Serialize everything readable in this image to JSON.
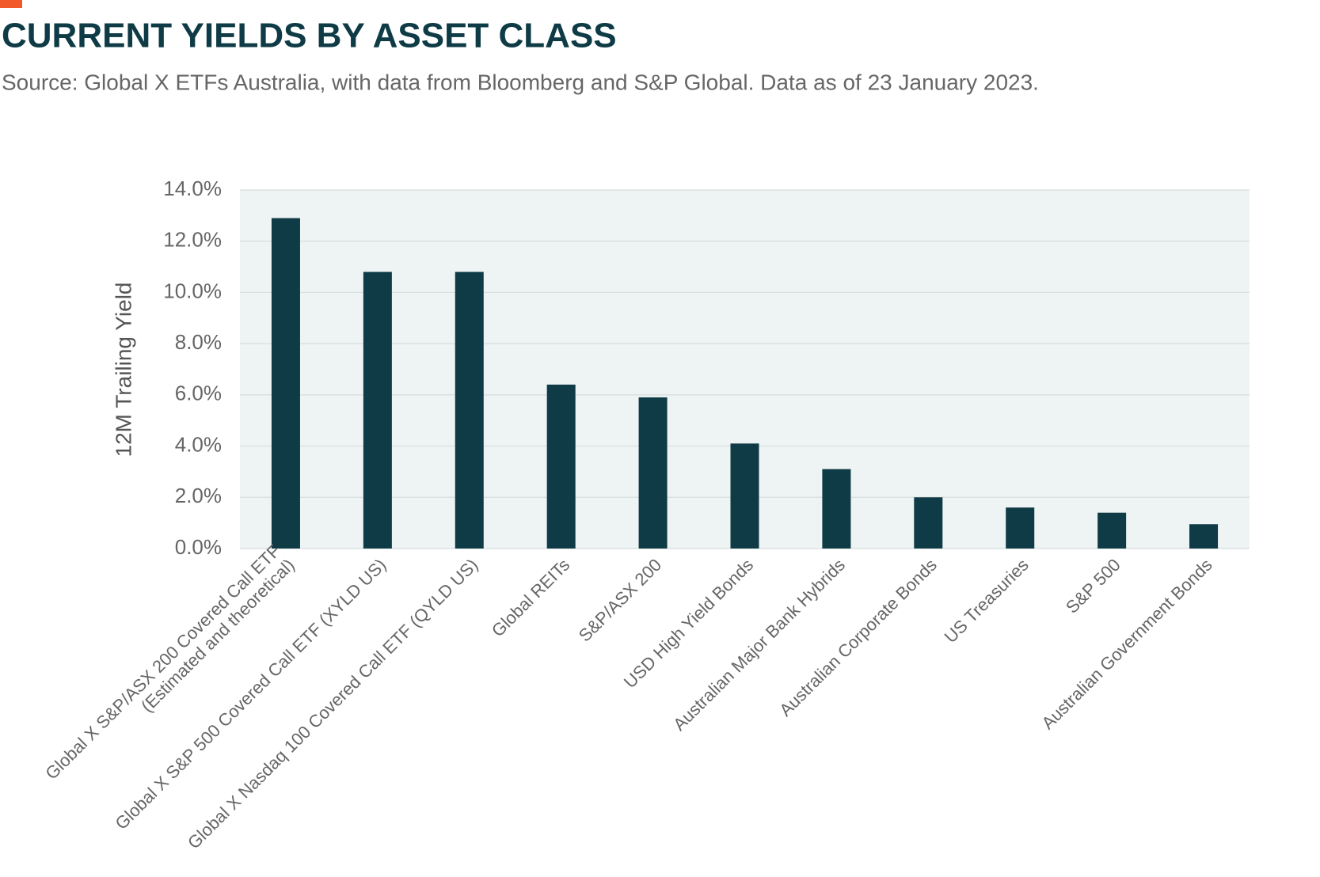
{
  "chart_data": {
    "type": "bar",
    "title": "CURRENT YIELDS BY ASSET CLASS",
    "subtitle": "Source: Global X ETFs Australia, with data from Bloomberg and S&P Global. Data as of 23 January 2023.",
    "y_label": "12M Trailing Yield",
    "categories": [
      "Global X S&P/ASX 200 Covered Call ETF\n(Estimated and theoretical)",
      "Global X S&P 500 Covered Call ETF (XYLD US)",
      "Global X Nasdaq 100 Covered Call ETF (QYLD US)",
      "Global REITs",
      "S&P/ASX 200",
      "USD High Yield Bonds",
      "Australian Major Bank Hybrids",
      "Australian Corporate Bonds",
      "US Treasuries",
      "S&P 500",
      "Australian Government Bonds"
    ],
    "values": [
      12.9,
      10.8,
      10.8,
      6.4,
      5.9,
      4.1,
      3.1,
      2.0,
      1.6,
      1.4,
      0.95
    ],
    "color": "#0e3b45",
    "ylim": [
      0,
      14
    ],
    "yticks": [
      {
        "value": 0,
        "label": "0.0%"
      },
      {
        "value": 2,
        "label": "2.0%"
      },
      {
        "value": 4,
        "label": "4.0%"
      },
      {
        "value": 6,
        "label": "6.0%"
      },
      {
        "value": 8,
        "label": "8.0%"
      },
      {
        "value": 10,
        "label": "10.0%"
      },
      {
        "value": 12,
        "label": "12.0%"
      },
      {
        "value": 14,
        "label": "14.0%"
      }
    ],
    "grid": true
  }
}
